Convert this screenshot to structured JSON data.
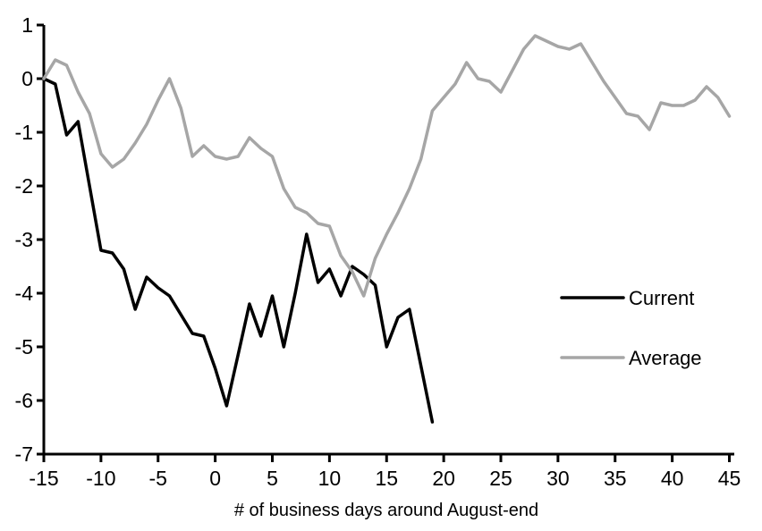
{
  "chart_data": {
    "type": "line",
    "title": "",
    "xlabel": "# of business days around August-end",
    "ylabel": "",
    "xlim": [
      -15,
      45
    ],
    "ylim": [
      -7,
      1
    ],
    "x_ticks": [
      -15,
      -10,
      -5,
      0,
      5,
      10,
      15,
      20,
      25,
      30,
      35,
      40,
      45
    ],
    "y_ticks": [
      1,
      0,
      -1,
      -2,
      -3,
      -4,
      -5,
      -6,
      -7
    ],
    "grid": false,
    "legend_position": "center-right",
    "series": [
      {
        "name": "Current",
        "color": "#000000",
        "x": [
          -15,
          -14,
          -13,
          -12,
          -11,
          -10,
          -9,
          -8,
          -7,
          -6,
          -5,
          -4,
          -3,
          -2,
          -1,
          0,
          1,
          2,
          3,
          4,
          5,
          6,
          7,
          8,
          9,
          10,
          11,
          12,
          13,
          14,
          15,
          16,
          17,
          18,
          19
        ],
        "values": [
          0.0,
          -0.1,
          -1.05,
          -0.8,
          -2.0,
          -3.2,
          -3.25,
          -3.55,
          -4.3,
          -3.7,
          -3.9,
          -4.05,
          -4.4,
          -4.75,
          -4.8,
          -5.4,
          -6.1,
          -5.15,
          -4.2,
          -4.8,
          -4.05,
          -5.0,
          -4.0,
          -2.9,
          -3.8,
          -3.55,
          -4.05,
          -3.5,
          -3.65,
          -3.85,
          -5.0,
          -4.45,
          -4.3,
          -5.35,
          -6.4
        ]
      },
      {
        "name": "Average",
        "color": "#a6a6a6",
        "x": [
          -15,
          -14,
          -13,
          -12,
          -11,
          -10,
          -9,
          -8,
          -7,
          -6,
          -5,
          -4,
          -3,
          -2,
          -1,
          0,
          1,
          2,
          3,
          4,
          5,
          6,
          7,
          8,
          9,
          10,
          11,
          12,
          13,
          14,
          15,
          16,
          17,
          18,
          19,
          20,
          21,
          22,
          23,
          24,
          25,
          26,
          27,
          28,
          29,
          30,
          31,
          32,
          33,
          34,
          35,
          36,
          37,
          38,
          39,
          40,
          41,
          42,
          43,
          44,
          45
        ],
        "values": [
          0.0,
          0.35,
          0.25,
          -0.25,
          -0.65,
          -1.4,
          -1.65,
          -1.5,
          -1.2,
          -0.85,
          -0.4,
          0.0,
          -0.55,
          -1.45,
          -1.25,
          -1.45,
          -1.5,
          -1.45,
          -1.1,
          -1.3,
          -1.45,
          -2.05,
          -2.4,
          -2.5,
          -2.7,
          -2.75,
          -3.3,
          -3.6,
          -4.05,
          -3.35,
          -2.9,
          -2.5,
          -2.05,
          -1.5,
          -0.6,
          -0.35,
          -0.1,
          0.3,
          0.0,
          -0.05,
          -0.25,
          0.15,
          0.55,
          0.8,
          0.7,
          0.6,
          0.55,
          0.65,
          0.3,
          -0.05,
          -0.35,
          -0.65,
          -0.7,
          -0.95,
          -0.45,
          -0.5,
          -0.5,
          -0.4,
          -0.15,
          -0.35,
          -0.7
        ]
      }
    ],
    "legend": {
      "current_label": "Current",
      "average_label": "Average"
    }
  }
}
